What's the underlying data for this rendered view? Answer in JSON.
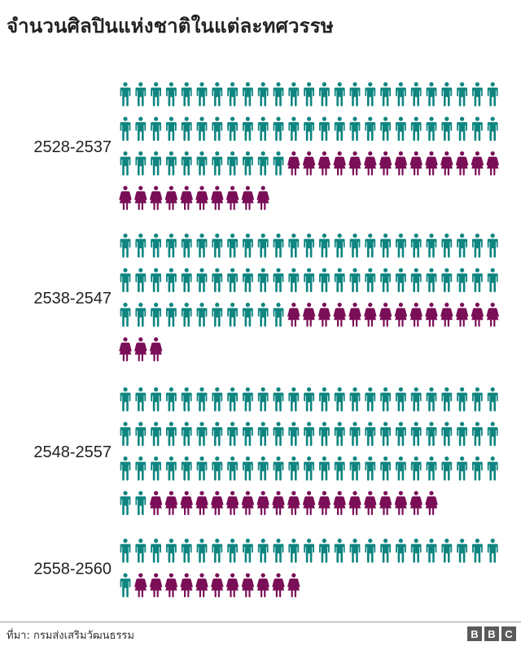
{
  "title": "จำนวนศิลปินแห่งชาติในแต่ละทศวรรษ",
  "footer": {
    "source": "ที่มา: กรมส่งเสริมวัฒนธรรม",
    "logo": [
      "B",
      "B",
      "C"
    ]
  },
  "colors": {
    "male": "#0f8580",
    "female": "#7a0e57"
  },
  "chart_data": {
    "type": "pictogram",
    "title": "จำนวนศิลปินแห่งชาติในแต่ละทศวรรษ",
    "icons_per_row": 25,
    "series": [
      {
        "icon": "male-person-icon",
        "color": "#0f8580"
      },
      {
        "icon": "female-person-icon",
        "color": "#7a0e57"
      }
    ],
    "rows": [
      {
        "period": "2528-2537",
        "male": 61,
        "female": 24
      },
      {
        "period": "2538-2547",
        "male": 61,
        "female": 17
      },
      {
        "period": "2548-2557",
        "male": 77,
        "female": 19
      },
      {
        "period": "2558-2560",
        "male": 26,
        "female": 11
      }
    ]
  }
}
